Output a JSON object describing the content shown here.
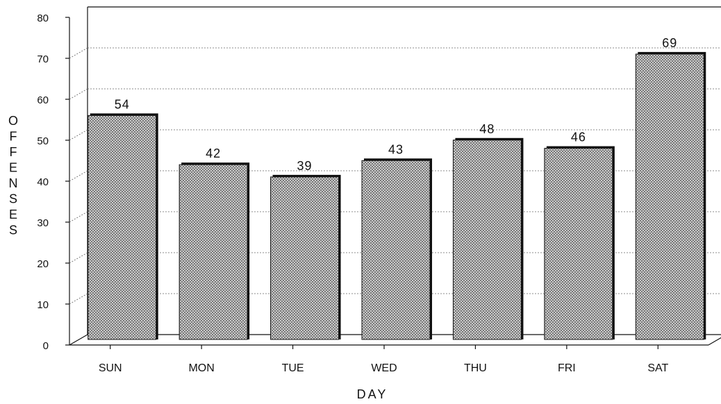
{
  "chart_data": {
    "type": "bar",
    "categories": [
      "SUN",
      "MON",
      "TUE",
      "WED",
      "THU",
      "FRI",
      "SAT"
    ],
    "values": [
      54,
      42,
      39,
      43,
      48,
      46,
      69
    ],
    "xlabel": "DAY",
    "ylabel": "OFFENSES",
    "ylim": [
      0,
      80
    ],
    "yticks": [
      0,
      10,
      20,
      30,
      40,
      50,
      60,
      70,
      80
    ],
    "grid": true,
    "bar_color": "#c8c8c8",
    "shadow_color": "#111111"
  }
}
